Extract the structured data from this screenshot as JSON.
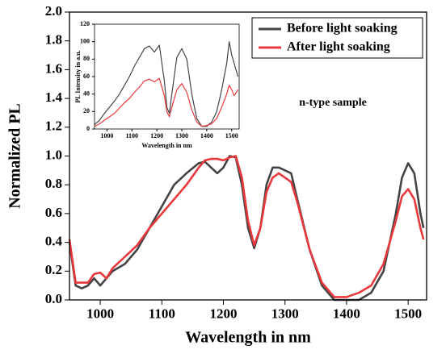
{
  "chart_data": [
    {
      "type": "line",
      "x_label": "Wavelength in nm",
      "y_label": "Normalized PL",
      "annotation": "n-type sample",
      "x": [
        950,
        960,
        970,
        980,
        990,
        1000,
        1010,
        1020,
        1040,
        1060,
        1080,
        1100,
        1120,
        1140,
        1160,
        1170,
        1180,
        1190,
        1200,
        1210,
        1220,
        1230,
        1240,
        1250,
        1260,
        1270,
        1280,
        1290,
        1300,
        1310,
        1320,
        1340,
        1360,
        1380,
        1400,
        1420,
        1440,
        1460,
        1480,
        1490,
        1500,
        1510,
        1520,
        1525
      ],
      "series": [
        {
          "name": "Before light soaking",
          "color": "#444444",
          "values": [
            0.4,
            0.1,
            0.08,
            0.1,
            0.15,
            0.1,
            0.15,
            0.2,
            0.25,
            0.35,
            0.5,
            0.65,
            0.8,
            0.88,
            0.95,
            0.96,
            0.92,
            0.88,
            0.92,
            1.0,
            0.99,
            0.8,
            0.5,
            0.36,
            0.5,
            0.8,
            0.92,
            0.92,
            0.9,
            0.88,
            0.7,
            0.35,
            0.1,
            0.0,
            0.0,
            0.0,
            0.05,
            0.2,
            0.6,
            0.85,
            0.95,
            0.88,
            0.6,
            0.5
          ]
        },
        {
          "name": "After light soaking",
          "color": "#e8383c",
          "values": [
            0.42,
            0.12,
            0.12,
            0.12,
            0.18,
            0.19,
            0.15,
            0.22,
            0.3,
            0.38,
            0.5,
            0.6,
            0.7,
            0.8,
            0.92,
            0.97,
            0.98,
            0.98,
            0.97,
            0.99,
            1.0,
            0.85,
            0.55,
            0.38,
            0.5,
            0.75,
            0.85,
            0.88,
            0.85,
            0.82,
            0.68,
            0.35,
            0.12,
            0.02,
            0.02,
            0.05,
            0.1,
            0.25,
            0.55,
            0.72,
            0.77,
            0.7,
            0.5,
            0.42
          ]
        }
      ],
      "xlim": [
        950,
        1530
      ],
      "xticks": [
        1000,
        1100,
        1200,
        1300,
        1400,
        1500
      ],
      "ylim": [
        0,
        2
      ],
      "yticks": [
        {
          "value": 0,
          "label": "0.0"
        },
        0.2,
        0.4,
        0.6,
        0.8,
        {
          "value": 1,
          "label": "1.0"
        },
        1.2,
        1.4,
        1.6,
        1.8,
        {
          "value": 2,
          "label": "2.0"
        }
      ],
      "legend": "upper right"
    },
    {
      "type": "line",
      "x_label": "Wavelength in nm",
      "y_label": "PL Intensity in a.u.",
      "x": [
        950,
        970,
        990,
        1010,
        1030,
        1050,
        1070,
        1090,
        1110,
        1130,
        1150,
        1170,
        1190,
        1210,
        1230,
        1240,
        1250,
        1260,
        1280,
        1300,
        1320,
        1340,
        1360,
        1380,
        1400,
        1420,
        1440,
        1460,
        1480,
        1490,
        1500,
        1510,
        1525
      ],
      "series": [
        {
          "color": "#444444",
          "values": [
            5,
            10,
            18,
            25,
            32,
            40,
            50,
            60,
            72,
            82,
            92,
            95,
            88,
            96,
            55,
            25,
            18,
            40,
            82,
            92,
            80,
            40,
            12,
            3,
            3,
            8,
            20,
            45,
            75,
            100,
            85,
            75,
            60
          ]
        },
        {
          "color": "#e8383c",
          "values": [
            3,
            6,
            10,
            14,
            18,
            24,
            30,
            35,
            42,
            48,
            55,
            57,
            54,
            58,
            38,
            20,
            14,
            25,
            45,
            52,
            42,
            22,
            8,
            3,
            4,
            6,
            12,
            25,
            40,
            50,
            45,
            38,
            45
          ]
        }
      ],
      "xlim": [
        950,
        1530
      ],
      "xticks": [
        1000,
        1100,
        1200,
        1300,
        1400,
        1500
      ],
      "ylim": [
        0,
        120
      ],
      "yticks": [
        0,
        20,
        40,
        60,
        80,
        100,
        120
      ]
    }
  ]
}
